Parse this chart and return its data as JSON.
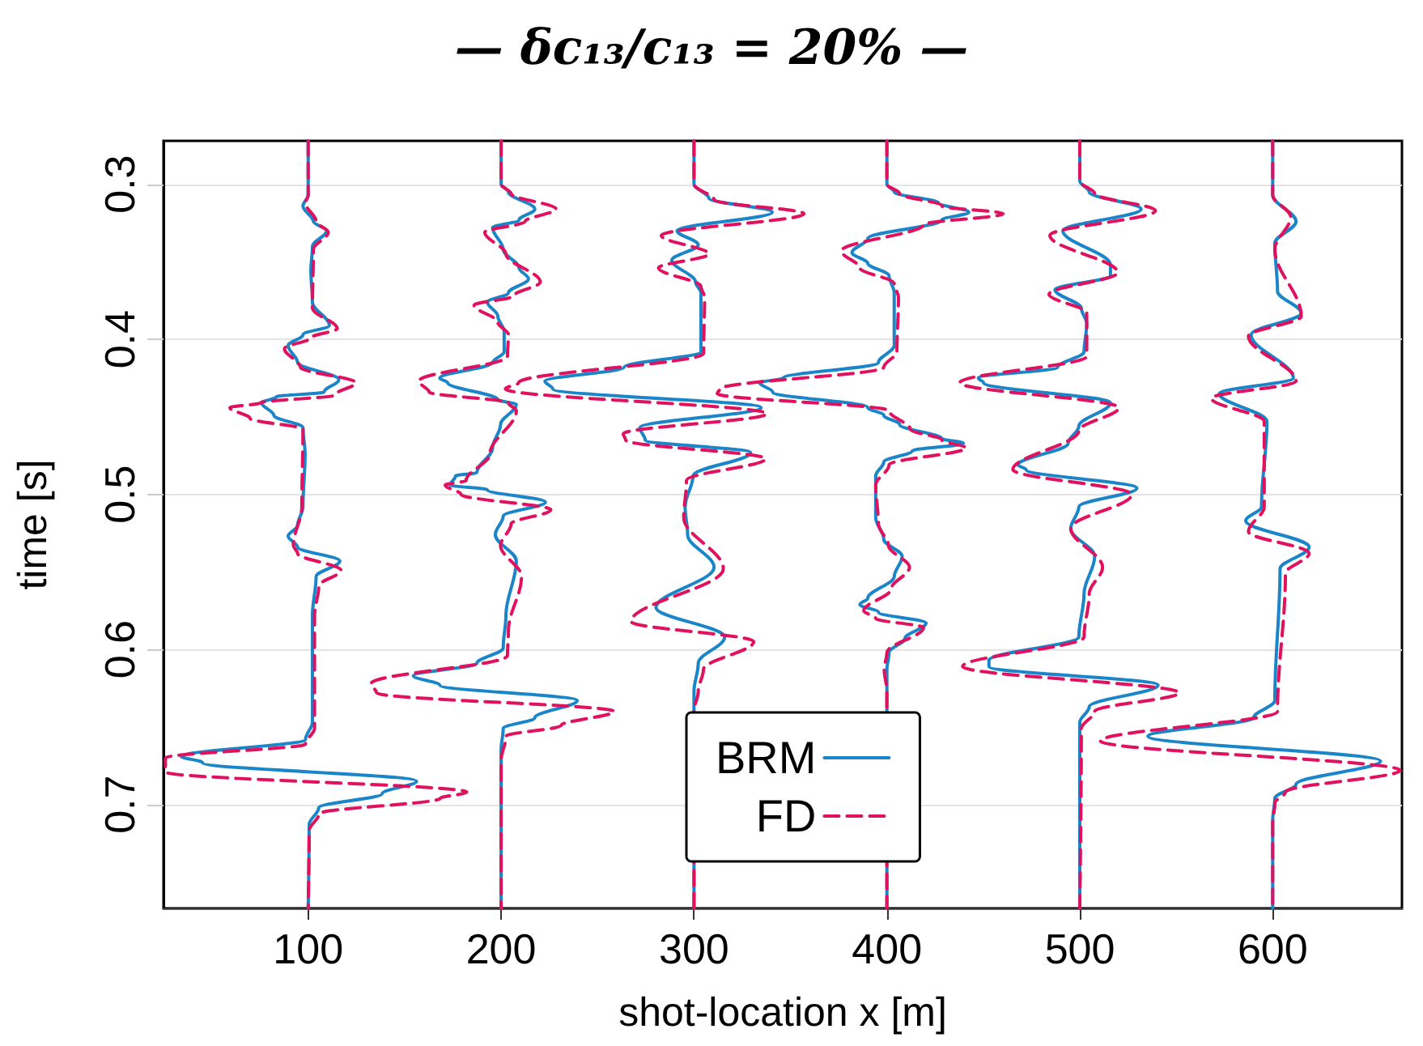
{
  "chart_data": {
    "type": "line",
    "title": "— δc₁₃/c₁₃ = 20% —",
    "xlabel": "shot-location x [m]",
    "ylabel": "time [s]",
    "xlim": [
      25,
      667
    ],
    "xticks": [
      100,
      200,
      300,
      400,
      500,
      600
    ],
    "ylim": [
      0.767,
      0.272
    ],
    "yticks": [
      0.3,
      0.4,
      0.5,
      0.6,
      0.7
    ],
    "grid": "y",
    "legend": "bottom",
    "marker": "none",
    "series": [
      {
        "name": "BRM",
        "color": "#1a85c8",
        "line_style": "solid",
        "x": [
          100,
          100,
          97.3,
          102.7,
          109.6,
          102.2,
          101.4,
          102.2,
          111,
          97.3,
          89.6,
          94.5,
          115.9,
          108.2,
          83.6,
          75.9,
          82.2,
          97.3,
          98.4,
          97.3,
          94.5,
          89.6,
          94.5,
          116.4,
          104.1,
          102.2,
          102.2,
          98.6,
          34.2,
          45.2,
          156.2,
          138.4,
          105.5,
          100.5,
          100
        ],
        "values": [
          0.272,
          0.307,
          0.314,
          0.324,
          0.33,
          0.34,
          0.356,
          0.376,
          0.391,
          0.397,
          0.404,
          0.415,
          0.426,
          0.434,
          0.437,
          0.441,
          0.449,
          0.457,
          0.474,
          0.508,
          0.52,
          0.527,
          0.534,
          0.543,
          0.553,
          0.578,
          0.647,
          0.658,
          0.669,
          0.673,
          0.685,
          0.693,
          0.702,
          0.713,
          0.767
        ]
      },
      {
        "name": "FD",
        "color": "#e0115f",
        "line_style": "dashed",
        "x": [
          100,
          100,
          98.6,
          104.1,
          110.4,
          102.7,
          102.2,
          115.1,
          101.4,
          87.7,
          95.9,
          124.7,
          113.7,
          75.3,
          59.4,
          69.8,
          97.3,
          96.7,
          92.3,
          94.5,
          117,
          105.5,
          103.3,
          103.3,
          98.6,
          26,
          26,
          182.2,
          168.5,
          105.5,
          100.5,
          100
        ],
        "values": [
          0.272,
          0.307,
          0.312,
          0.324,
          0.331,
          0.342,
          0.38,
          0.393,
          0.399,
          0.406,
          0.418,
          0.428,
          0.436,
          0.441,
          0.444,
          0.451,
          0.458,
          0.508,
          0.533,
          0.538,
          0.549,
          0.559,
          0.578,
          0.651,
          0.661,
          0.67,
          0.679,
          0.692,
          0.696,
          0.706,
          0.717,
          0.767
        ]
      },
      {
        "color": "#1a85c8",
        "line_style": "solid",
        "x": [
          200,
          200,
          203.8,
          217.5,
          209.3,
          195.6,
          201.1,
          209.3,
          214.2,
          203.8,
          192.9,
          198.3,
          201.6,
          201.6,
          195.6,
          168.2,
          172.3,
          198.4,
          207.9,
          199.7,
          195.6,
          187.4,
          176.4,
          173.7,
          192.9,
          223,
          201.1,
          197,
          207.9,
          202.5,
          201.1,
          187.4,
          154.5,
          168.2,
          239.5,
          217.5,
          201.1,
          200,
          200
        ],
        "values": [
          0.272,
          0.3,
          0.305,
          0.316,
          0.323,
          0.328,
          0.342,
          0.354,
          0.361,
          0.37,
          0.376,
          0.385,
          0.395,
          0.408,
          0.415,
          0.425,
          0.428,
          0.439,
          0.442,
          0.455,
          0.47,
          0.486,
          0.488,
          0.494,
          0.497,
          0.505,
          0.514,
          0.526,
          0.543,
          0.578,
          0.599,
          0.609,
          0.617,
          0.623,
          0.633,
          0.644,
          0.651,
          0.665,
          0.767
        ]
      },
      {
        "color": "#e0115f",
        "line_style": "dashed",
        "x": [
          200,
          200,
          205.2,
          228.5,
          212.5,
          191.5,
          202.5,
          220.3,
          206.6,
          186,
          198.3,
          203.8,
          203.3,
          157.3,
          162.7,
          203.8,
          207.9,
          194.2,
          181.9,
          171,
          179.2,
          225.8,
          205.2,
          199.7,
          210.6,
          203.8,
          203.3,
          132.6,
          135.4,
          258.6,
          231.2,
          202.5,
          200,
          200
        ],
        "values": [
          0.272,
          0.3,
          0.306,
          0.316,
          0.324,
          0.331,
          0.345,
          0.363,
          0.372,
          0.378,
          0.389,
          0.397,
          0.411,
          0.427,
          0.434,
          0.441,
          0.446,
          0.474,
          0.491,
          0.494,
          0.5,
          0.51,
          0.519,
          0.533,
          0.553,
          0.588,
          0.604,
          0.622,
          0.628,
          0.64,
          0.649,
          0.656,
          0.672,
          0.767
        ]
      },
      {
        "color": "#1a85c8",
        "line_style": "solid",
        "x": [
          300,
          300,
          307.7,
          340.6,
          291.2,
          302.2,
          288.5,
          300.8,
          303.6,
          303.6,
          263.8,
          222.7,
          226.8,
          334.8,
          271.9,
          274.7,
          329.4,
          299.5,
          295.4,
          296.7,
          310.4,
          280.3,
          315.9,
          302.2,
          300,
          300
        ],
        "values": [
          0.272,
          0.3,
          0.309,
          0.318,
          0.33,
          0.339,
          0.349,
          0.363,
          0.37,
          0.408,
          0.418,
          0.427,
          0.432,
          0.444,
          0.457,
          0.465,
          0.473,
          0.488,
          0.508,
          0.526,
          0.547,
          0.573,
          0.592,
          0.609,
          0.627,
          0.767
        ]
      },
      {
        "color": "#e0115f",
        "line_style": "dashed",
        "x": [
          300,
          300,
          310.4,
          357,
          283,
          307.7,
          281.6,
          303.6,
          305.5,
          305,
          209.1,
          202.2,
          337.8,
          263.3,
          264.6,
          337.1,
          296.1,
          294.7,
          315.2,
          267.4,
          331,
          304.9,
          302.2,
          300,
          300
        ],
        "values": [
          0.272,
          0.3,
          0.31,
          0.319,
          0.333,
          0.345,
          0.354,
          0.366,
          0.373,
          0.409,
          0.428,
          0.432,
          0.448,
          0.461,
          0.465,
          0.477,
          0.491,
          0.515,
          0.548,
          0.582,
          0.595,
          0.613,
          0.627,
          0.64,
          0.767
        ]
      },
      {
        "color": "#1a85c8",
        "line_style": "solid",
        "x": [
          400,
          400,
          403.8,
          426.8,
          442.5,
          428.5,
          390.1,
          381.9,
          390.1,
          401.1,
          403.8,
          403.8,
          395.6,
          346.3,
          334,
          340.8,
          390.1,
          398.4,
          406.6,
          428.5,
          439.7,
          413.1,
          398.4,
          394.2,
          394.2,
          398.4,
          407.9,
          403.8,
          390.1,
          386,
          395.6,
          420.3,
          409.3,
          401.1,
          400,
          400
        ],
        "values": [
          0.272,
          0.3,
          0.305,
          0.312,
          0.318,
          0.323,
          0.335,
          0.344,
          0.351,
          0.359,
          0.37,
          0.404,
          0.415,
          0.425,
          0.428,
          0.434,
          0.444,
          0.449,
          0.455,
          0.464,
          0.467,
          0.472,
          0.479,
          0.488,
          0.515,
          0.529,
          0.54,
          0.553,
          0.567,
          0.571,
          0.576,
          0.583,
          0.593,
          0.602,
          0.613,
          0.767
        ]
      },
      {
        "color": "#e0115f",
        "line_style": "dashed",
        "x": [
          400,
          400,
          406.6,
          428.5,
          460.3,
          419,
          376.4,
          386,
          403.8,
          406,
          405.2,
          398.4,
          313.4,
          312,
          401.1,
          412.1,
          428.5,
          441,
          401.1,
          394.2,
          395.6,
          400.8,
          411.7,
          402.2,
          388,
          394.2,
          419,
          400,
          398.6,
          400,
          400
        ],
        "values": [
          0.272,
          0.3,
          0.306,
          0.314,
          0.319,
          0.326,
          0.343,
          0.354,
          0.364,
          0.373,
          0.408,
          0.418,
          0.432,
          0.435,
          0.446,
          0.458,
          0.465,
          0.47,
          0.481,
          0.494,
          0.519,
          0.533,
          0.547,
          0.561,
          0.575,
          0.58,
          0.586,
          0.602,
          0.613,
          0.627,
          0.767
        ]
      },
      {
        "color": "#1a85c8",
        "line_style": "solid",
        "x": [
          500,
          500,
          504.9,
          531.8,
          491.2,
          515.9,
          515.9,
          487.1,
          500.8,
          503.6,
          502.2,
          488.5,
          447.4,
          450.1,
          515.9,
          499.5,
          494,
          468,
          472.1,
          529.6,
          499.5,
          495.3,
          507.7,
          502.2,
          499.5,
          452.9,
          452.9,
          540.6,
          504.9,
          500,
          500
        ],
        "values": [
          0.272,
          0.298,
          0.305,
          0.316,
          0.33,
          0.352,
          0.359,
          0.368,
          0.38,
          0.39,
          0.408,
          0.418,
          0.425,
          0.428,
          0.441,
          0.456,
          0.467,
          0.481,
          0.484,
          0.496,
          0.508,
          0.522,
          0.54,
          0.564,
          0.592,
          0.607,
          0.611,
          0.623,
          0.637,
          0.647,
          0.767
        ]
      },
      {
        "color": "#e0115f",
        "line_style": "dashed",
        "x": [
          500,
          500,
          507.7,
          539.2,
          484.5,
          519.7,
          484,
          503.6,
          503.6,
          437.8,
          520.2,
          499.5,
          465.3,
          526.9,
          495.3,
          511.8,
          504.9,
          502.2,
          439.2,
          551.5,
          507.7,
          500.8,
          500
        ],
        "values": [
          0.272,
          0.298,
          0.306,
          0.317,
          0.333,
          0.357,
          0.371,
          0.383,
          0.411,
          0.428,
          0.444,
          0.459,
          0.484,
          0.5,
          0.522,
          0.547,
          0.564,
          0.592,
          0.611,
          0.628,
          0.64,
          0.651,
          0.767
        ]
      },
      {
        "color": "#1a85c8",
        "line_style": "solid",
        "x": [
          600,
          600,
          612.1,
          601.1,
          602.5,
          614.8,
          588.8,
          610.7,
          572.3,
          597,
          594.2,
          586,
          618.9,
          603.8,
          601.1,
          590.1,
          535.3,
          655.9,
          612.1,
          601.1,
          600,
          600
        ],
        "values": [
          0.272,
          0.307,
          0.324,
          0.338,
          0.369,
          0.383,
          0.397,
          0.425,
          0.435,
          0.453,
          0.508,
          0.517,
          0.534,
          0.548,
          0.633,
          0.644,
          0.656,
          0.672,
          0.687,
          0.696,
          0.71,
          0.767
        ]
      },
      {
        "color": "#e0115f",
        "line_style": "dashed",
        "x": [
          600,
          600,
          609.3,
          601.1,
          614.8,
          587.4,
          612.1,
          568.2,
          595.6,
          595.6,
          587.4,
          618.9,
          606.6,
          602.5,
          510.7,
          666,
          606.6,
          601.1,
          600,
          600
        ],
        "values": [
          0.272,
          0.307,
          0.321,
          0.342,
          0.385,
          0.398,
          0.427,
          0.438,
          0.453,
          0.508,
          0.524,
          0.538,
          0.551,
          0.64,
          0.659,
          0.678,
          0.692,
          0.699,
          0.713,
          0.767
        ]
      }
    ]
  }
}
